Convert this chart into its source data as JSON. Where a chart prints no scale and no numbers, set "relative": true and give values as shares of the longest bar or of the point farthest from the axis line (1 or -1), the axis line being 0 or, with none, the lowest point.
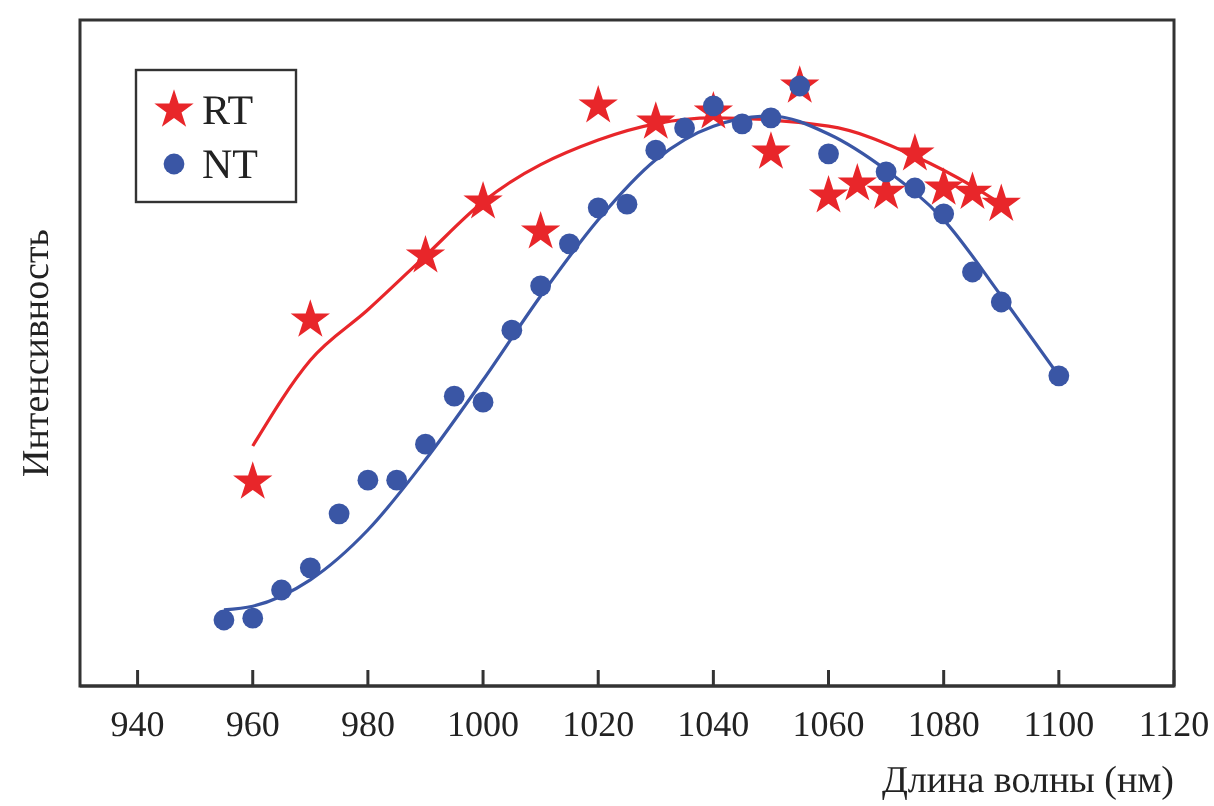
{
  "chart_data": {
    "type": "scatter",
    "xlabel": "Длина волны (нм)",
    "ylabel": "Интенсивность",
    "relative": true,
    "xlim": [
      930,
      1120
    ],
    "xticks": [
      940,
      960,
      980,
      1000,
      1020,
      1040,
      1060,
      1080,
      1100,
      1120
    ],
    "grid": false,
    "legend": "top left",
    "series": [
      {
        "name": "RT",
        "marker": "star",
        "color": "#e8262a",
        "x": [
          960,
          970,
          990,
          1000,
          1010,
          1020,
          1030,
          1040,
          1050,
          1055,
          1060,
          1065,
          1070,
          1075,
          1080,
          1085,
          1090
        ],
        "values": [
          0.34,
          0.61,
          0.717,
          0.807,
          0.757,
          0.967,
          0.94,
          0.957,
          0.89,
          1,
          0.817,
          0.837,
          0.823,
          0.887,
          0.83,
          0.823,
          0.803
        ]
      },
      {
        "name": "NT",
        "marker": "circle",
        "color": "#3a56a5",
        "x": [
          955,
          960,
          965,
          970,
          975,
          980,
          985,
          990,
          995,
          1000,
          1005,
          1010,
          1015,
          1020,
          1025,
          1030,
          1035,
          1040,
          1045,
          1050,
          1055,
          1060,
          1070,
          1075,
          1080,
          1085,
          1090,
          1100
        ],
        "values": [
          0.11,
          0.113,
          0.16,
          0.197,
          0.287,
          0.343,
          0.343,
          0.403,
          0.483,
          0.473,
          0.593,
          0.667,
          0.737,
          0.797,
          0.803,
          0.893,
          0.93,
          0.967,
          0.937,
          0.947,
          1,
          0.887,
          0.857,
          0.83,
          0.787,
          0.69,
          0.64,
          0.517
        ]
      },
      {
        "type": "line",
        "marker": "none",
        "line_style": "solid",
        "color": "#e8262a",
        "x": [
          960,
          970,
          980,
          990,
          1000,
          1020,
          1040,
          1060,
          1075,
          1085,
          1090
        ],
        "values": [
          0.4,
          0.543,
          0.627,
          0.717,
          0.807,
          0.91,
          0.947,
          0.933,
          0.883,
          0.833,
          0.803
        ]
      },
      {
        "type": "line",
        "marker": "none",
        "line_style": "solid",
        "color": "#3a56a5",
        "x": [
          955,
          960,
          970,
          980,
          990,
          1000,
          1010,
          1020,
          1030,
          1040,
          1050,
          1060,
          1070,
          1080,
          1090,
          1100
        ],
        "values": [
          0.127,
          0.133,
          0.177,
          0.26,
          0.377,
          0.51,
          0.65,
          0.777,
          0.877,
          0.933,
          0.95,
          0.92,
          0.86,
          0.777,
          0.65,
          0.517
        ]
      }
    ]
  }
}
